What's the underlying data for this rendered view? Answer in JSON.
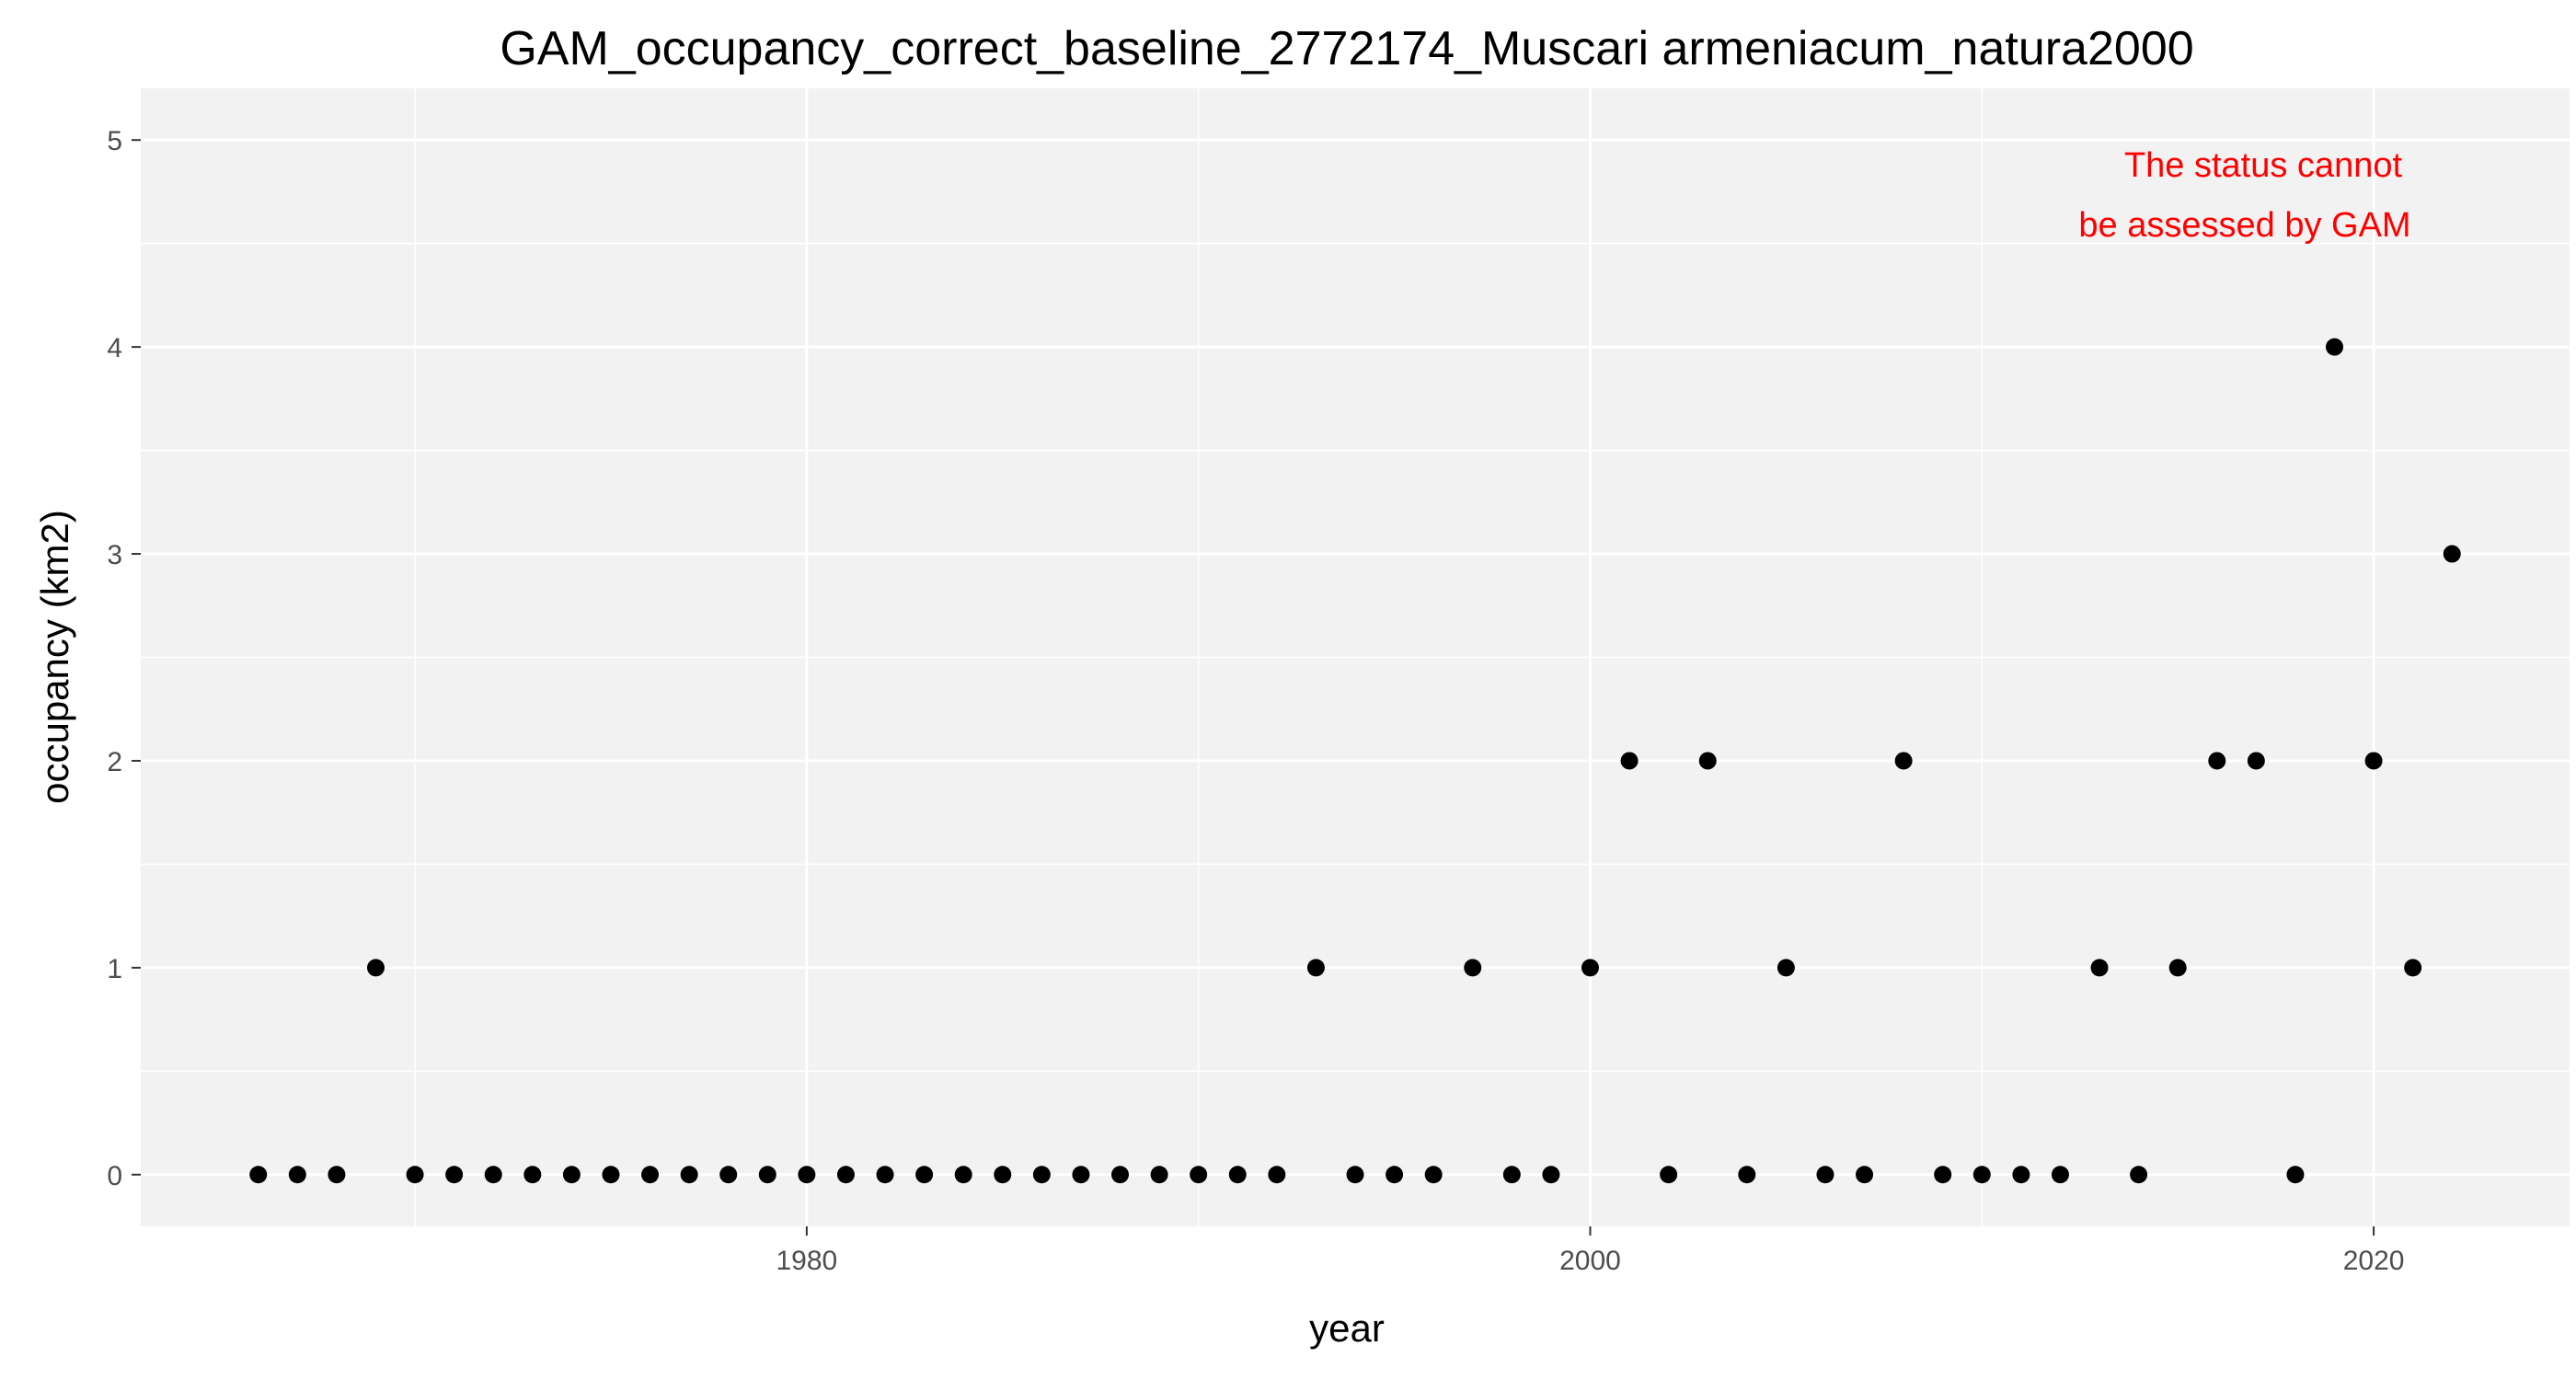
{
  "chart_data": {
    "type": "scatter",
    "title": "GAM_occupancy_correct_baseline_2772174_Muscari armeniacum_natura2000",
    "xlabel": "year",
    "ylabel": "occupancy (km2)",
    "xlim": [
      1963,
      2025
    ],
    "ylim": [
      -0.25,
      5.25
    ],
    "x_ticks": [
      1980,
      2000,
      2020
    ],
    "y_ticks": [
      0,
      1,
      2,
      3,
      4,
      5
    ],
    "grid": true,
    "annotation": [
      "The status cannot",
      "be assessed by GAM"
    ],
    "colors": {
      "panel": "#f2f2f2",
      "grid": "#ffffff",
      "point": "#000000",
      "annotation": "#ff0000"
    },
    "x": [
      1966,
      1967,
      1968,
      1969,
      1970,
      1971,
      1972,
      1973,
      1974,
      1975,
      1976,
      1977,
      1978,
      1979,
      1980,
      1981,
      1982,
      1983,
      1984,
      1985,
      1986,
      1987,
      1988,
      1989,
      1990,
      1991,
      1992,
      1993,
      1994,
      1995,
      1996,
      1997,
      1998,
      1999,
      2000,
      2001,
      2002,
      2003,
      2004,
      2005,
      2006,
      2007,
      2008,
      2009,
      2010,
      2011,
      2012,
      2013,
      2014,
      2015,
      2016,
      2017,
      2018,
      2019,
      2020,
      2021,
      2022
    ],
    "y": [
      0,
      0,
      0,
      1,
      0,
      0,
      0,
      0,
      0,
      0,
      0,
      0,
      0,
      0,
      0,
      0,
      0,
      0,
      0,
      0,
      0,
      0,
      0,
      0,
      0,
      0,
      0,
      1,
      0,
      0,
      0,
      1,
      0,
      0,
      1,
      2,
      0,
      2,
      0,
      1,
      0,
      0,
      2,
      0,
      0,
      0,
      0,
      1,
      0,
      1,
      2,
      2,
      0,
      4,
      2,
      1,
      3
    ]
  }
}
